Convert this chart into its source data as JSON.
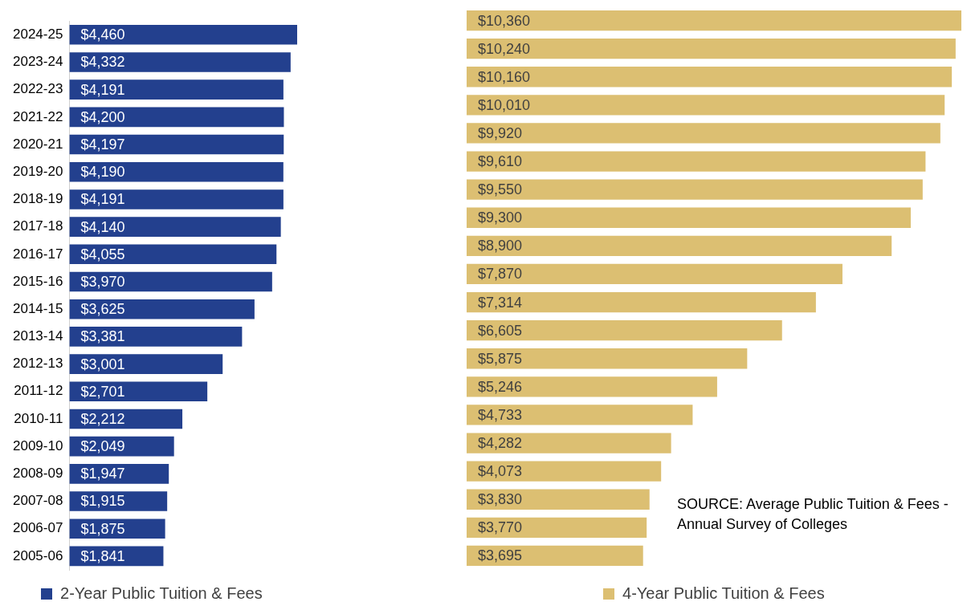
{
  "chart_data": [
    {
      "type": "bar",
      "orientation": "horizontal",
      "categories": [
        "2024-25",
        "2023-24",
        "2022-23",
        "2021-22",
        "2020-21",
        "2019-20",
        "2018-19",
        "2017-18",
        "2016-17",
        "2015-16",
        "2014-15",
        "2013-14",
        "2012-13",
        "2011-12",
        "2010-11",
        "2009-10",
        "2008-09",
        "2007-08",
        "2006-07",
        "2005-06"
      ],
      "series": [
        {
          "name": "2-Year Public Tuition & Fees",
          "color": "#23408e",
          "values": [
            4460,
            4332,
            4191,
            4200,
            4197,
            4190,
            4191,
            4140,
            4055,
            3970,
            3625,
            3381,
            3001,
            2701,
            2212,
            2049,
            1947,
            1915,
            1875,
            1841
          ],
          "value_labels": [
            "$4,460",
            "$4,332",
            "$4,191",
            "$4,200",
            "$4,197",
            "$4,190",
            "$4,191",
            "$4,140",
            "$4,055",
            "$3,970",
            "$3,625",
            "$3,381",
            "$3,001",
            "$2,701",
            "$2,212",
            "$2,049",
            "$1,947",
            "$1,915",
            "$1,875",
            "$1,841"
          ]
        }
      ],
      "tick_labels": "y",
      "grid": false,
      "legend": "bottom"
    },
    {
      "type": "bar",
      "orientation": "horizontal",
      "categories": [
        "2024-25",
        "2023-24",
        "2022-23",
        "2021-22",
        "2020-21",
        "2019-20",
        "2018-19",
        "2017-18",
        "2016-17",
        "2015-16",
        "2014-15",
        "2013-14",
        "2012-13",
        "2011-12",
        "2010-11",
        "2009-10",
        "2008-09",
        "2007-08",
        "2006-07",
        "2005-06"
      ],
      "series": [
        {
          "name": "4-Year Public Tuition & Fees",
          "color": "#dcbf72",
          "values": [
            10360,
            10240,
            10160,
            10010,
            9920,
            9610,
            9550,
            9300,
            8900,
            7870,
            7314,
            6605,
            5875,
            5246,
            4733,
            4282,
            4073,
            3830,
            3770,
            3695
          ],
          "value_labels": [
            "$10,360",
            "$10,240",
            "$10,160",
            "$10,010",
            "$9,920",
            "$9,610",
            "$9,550",
            "$9,300",
            "$8,900",
            "$7,870",
            "$7,314",
            "$6,605",
            "$5,875",
            "$5,246",
            "$4,733",
            "$4,282",
            "$4,073",
            "$3,830",
            "$3,770",
            "$3,695"
          ]
        }
      ],
      "tick_labels": false,
      "grid": false,
      "legend": "bottom",
      "annotations": [
        "SOURCE: Average Public Tuition & Fees - Annual Survey of Colleges"
      ]
    }
  ]
}
